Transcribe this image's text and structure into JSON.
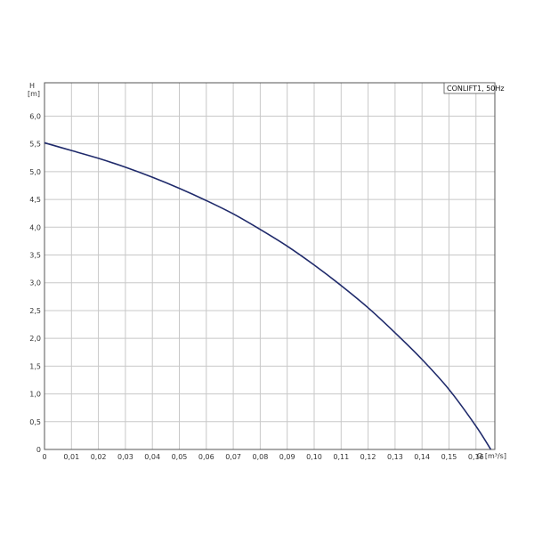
{
  "chart_data": {
    "type": "line",
    "title": "",
    "xlabel": "Q [m³/s]",
    "ylabel_top": "H",
    "ylabel_unit": "[m]",
    "xlim": [
      0,
      0.167
    ],
    "ylim": [
      0,
      6.6
    ],
    "x_ticks": [
      0,
      0.01,
      0.02,
      0.03,
      0.04,
      0.05,
      0.06,
      0.07,
      0.08,
      0.09,
      0.1,
      0.11,
      0.12,
      0.13,
      0.14,
      0.15,
      0.16
    ],
    "x_tick_labels": [
      "0",
      "0,01",
      "0,02",
      "0,03",
      "0,04",
      "0,05",
      "0,06",
      "0,07",
      "0,08",
      "0,09",
      "0,10",
      "0,11",
      "0,12",
      "0,13",
      "0,14",
      "0,15",
      "0,16"
    ],
    "y_ticks": [
      0,
      0.5,
      1.0,
      1.5,
      2.0,
      2.5,
      3.0,
      3.5,
      4.0,
      4.5,
      5.0,
      5.5,
      6.0
    ],
    "y_tick_labels": [
      "0",
      "0,5",
      "1,0",
      "1,5",
      "2,0",
      "2,5",
      "3,0",
      "3,5",
      "4,0",
      "4,5",
      "5,0",
      "5,5",
      "6,0"
    ],
    "grid": true,
    "legend_position": "top-right",
    "series": [
      {
        "name": "CONLIFT1, 50Hz",
        "color": "#1f2a6b",
        "x": [
          0,
          0.01,
          0.02,
          0.03,
          0.04,
          0.05,
          0.06,
          0.07,
          0.08,
          0.09,
          0.1,
          0.11,
          0.12,
          0.13,
          0.14,
          0.15,
          0.16,
          0.1655
        ],
        "y": [
          5.52,
          5.38,
          5.24,
          5.08,
          4.9,
          4.7,
          4.48,
          4.24,
          3.96,
          3.66,
          3.32,
          2.95,
          2.55,
          2.1,
          1.62,
          1.08,
          0.42,
          0.0
        ]
      }
    ]
  }
}
